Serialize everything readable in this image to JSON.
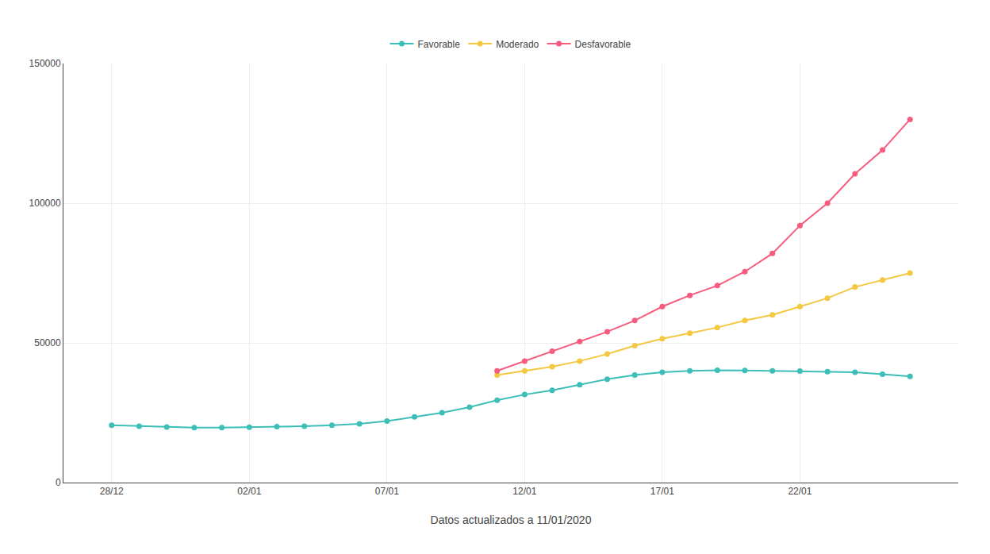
{
  "chart_data": {
    "type": "line",
    "xlabel": "Datos actualizados a 11/01/2020",
    "categories": [
      "28/12",
      null,
      null,
      null,
      null,
      "02/01",
      null,
      null,
      null,
      null,
      "07/01",
      null,
      null,
      null,
      null,
      "12/01",
      null,
      null,
      null,
      null,
      "17/01",
      null,
      null,
      null,
      null,
      "22/01",
      null,
      null,
      null,
      null
    ],
    "series": [
      {
        "name": "Favorable",
        "color": "#3dbfb8",
        "values": [
          20500,
          20200,
          19900,
          19700,
          19700,
          19800,
          20000,
          20200,
          20500,
          21000,
          22000,
          23500,
          25000,
          27000,
          29500,
          31500,
          33000,
          35000,
          37000,
          38500,
          39500,
          40000,
          40200,
          40100,
          40000,
          39900,
          39700,
          39500,
          38800,
          38000
        ]
      },
      {
        "name": "Moderado",
        "color": "#f5c842",
        "values": [
          null,
          null,
          null,
          null,
          null,
          null,
          null,
          null,
          null,
          null,
          null,
          null,
          null,
          null,
          38500,
          40000,
          41500,
          43500,
          46000,
          49000,
          51500,
          53500,
          55500,
          58000,
          60000,
          63000,
          66000,
          70000,
          72500,
          75000
        ]
      },
      {
        "name": "Desfavorable",
        "color": "#f75c7e",
        "values": [
          null,
          null,
          null,
          null,
          null,
          null,
          null,
          null,
          null,
          null,
          null,
          null,
          null,
          null,
          40000,
          43500,
          47000,
          50500,
          54000,
          58000,
          63000,
          67000,
          70500,
          75500,
          82000,
          92000,
          100000,
          110500,
          119000,
          130000
        ]
      }
    ],
    "ylim": [
      0,
      150000
    ],
    "yticks": [
      0,
      50000,
      100000,
      150000
    ],
    "grid": true,
    "legend": "top",
    "marker": "circle"
  }
}
